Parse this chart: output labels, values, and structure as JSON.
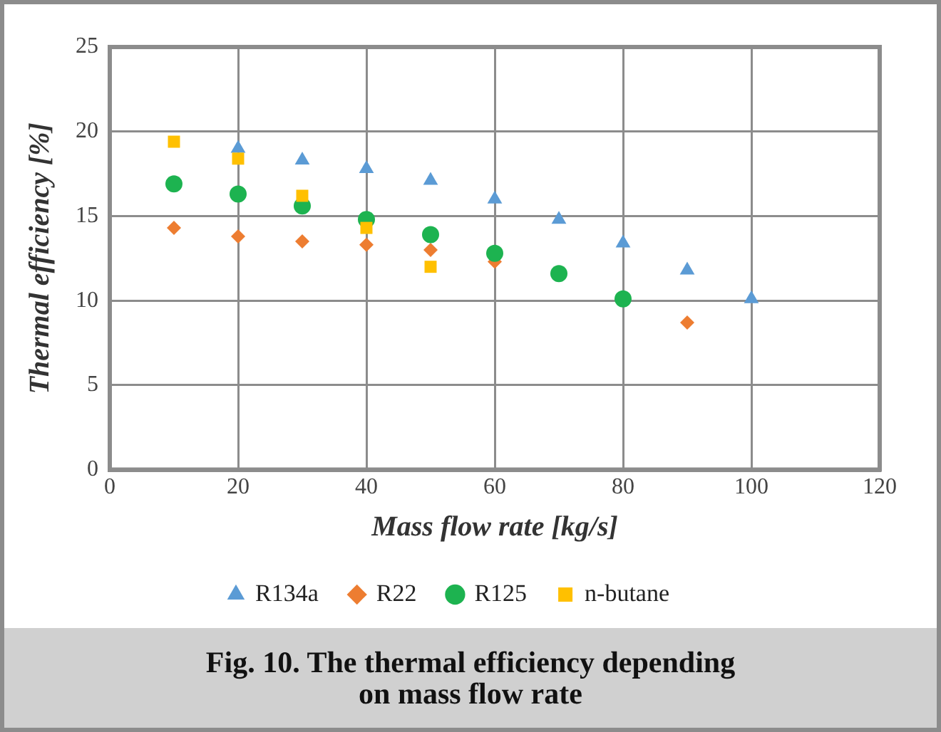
{
  "chart_data": {
    "type": "scatter",
    "xlabel": "Mass flow rate [kg/s]",
    "ylabel": "Thermal efficiency [%]",
    "x": [
      10,
      20,
      30,
      40,
      50,
      60,
      70,
      80,
      90,
      100
    ],
    "series": [
      {
        "name": "R134a",
        "color": "#5b9bd5",
        "marker": "triangle",
        "values": [
          null,
          19.0,
          18.3,
          17.8,
          17.1,
          16.0,
          14.8,
          13.4,
          11.8,
          10.1
        ]
      },
      {
        "name": "R22",
        "color": "#ed7d31",
        "marker": "diamond",
        "values": [
          14.3,
          13.8,
          13.5,
          13.3,
          13.0,
          12.3,
          null,
          null,
          8.7,
          null
        ]
      },
      {
        "name": "R125",
        "color": "#1db350",
        "marker": "circle",
        "values": [
          16.9,
          16.3,
          15.6,
          14.8,
          13.9,
          12.8,
          11.6,
          10.1,
          null,
          null
        ]
      },
      {
        "name": "n-butane",
        "color": "#ffc000",
        "marker": "square",
        "values": [
          19.4,
          18.4,
          16.2,
          14.3,
          12.0,
          null,
          null,
          null,
          null,
          null
        ]
      }
    ],
    "xlim": [
      0,
      120
    ],
    "xticks": [
      0,
      20,
      40,
      60,
      80,
      100,
      120
    ],
    "ylim": [
      0,
      25
    ],
    "yticks": [
      0,
      5,
      10,
      15,
      20,
      25
    ],
    "grid": true,
    "legend": "bottom",
    "annotations": [
      "Fig. 10. The thermal efficiency depending\non mass flow rate"
    ]
  }
}
